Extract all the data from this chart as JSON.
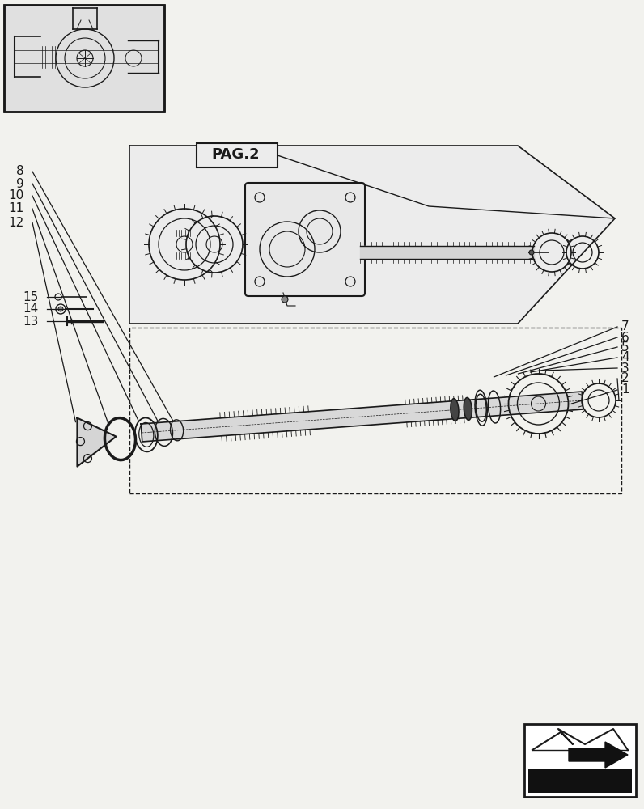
{
  "bg_color": "#f2f2ee",
  "line_color": "#1a1a1a",
  "pag2_label": "PAG.2",
  "part_numbers_right": [
    "1",
    "2",
    "3",
    "4",
    "5",
    "6",
    "7"
  ],
  "part_numbers_left_top": [
    "13",
    "14",
    "15"
  ],
  "part_numbers_left_bottom": [
    "12",
    "11",
    "10",
    "9",
    "8"
  ]
}
